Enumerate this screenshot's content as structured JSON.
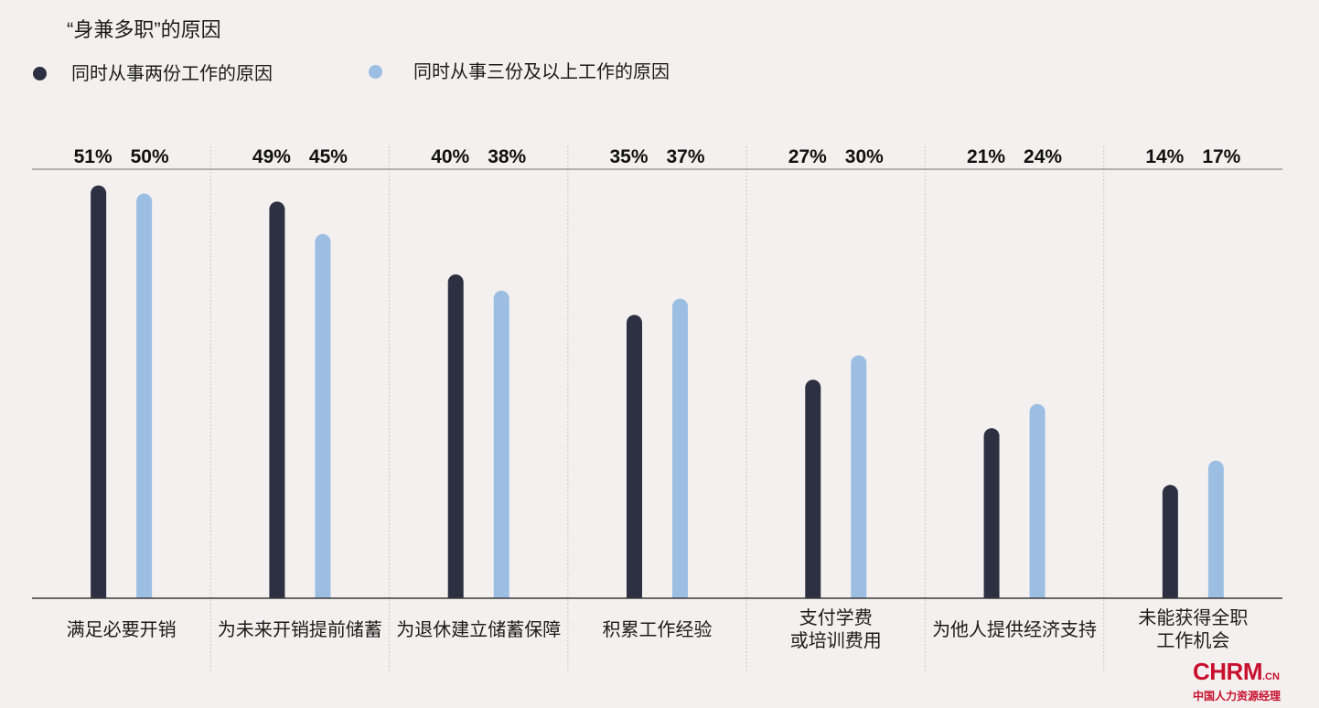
{
  "chart_data": {
    "type": "bar",
    "title": "“身兼多职”的原因",
    "categories": [
      "满足必要开销",
      "为未来开销提前储蓄",
      "为退休建立储蓄保障",
      "积累工作经验",
      "支付学费\n或培训费用",
      "为他人提供经济支持",
      "未能获得全职\n工作机会"
    ],
    "series": [
      {
        "name": "同时从事两份工作的原因",
        "color": "#2c3040",
        "values": [
          51,
          49,
          40,
          35,
          27,
          21,
          14
        ]
      },
      {
        "name": "同时从事三份及以上工作的原因",
        "color": "#9dbee3",
        "values": [
          50,
          45,
          38,
          37,
          30,
          24,
          17
        ]
      }
    ],
    "unit": "%",
    "ylim": [
      0,
      53
    ],
    "legend_position": "top-left"
  },
  "logo": {
    "brand": "CHRM",
    "domain": ".CN",
    "tagline": "中国人力资源经理",
    "color": "#c8102e"
  }
}
